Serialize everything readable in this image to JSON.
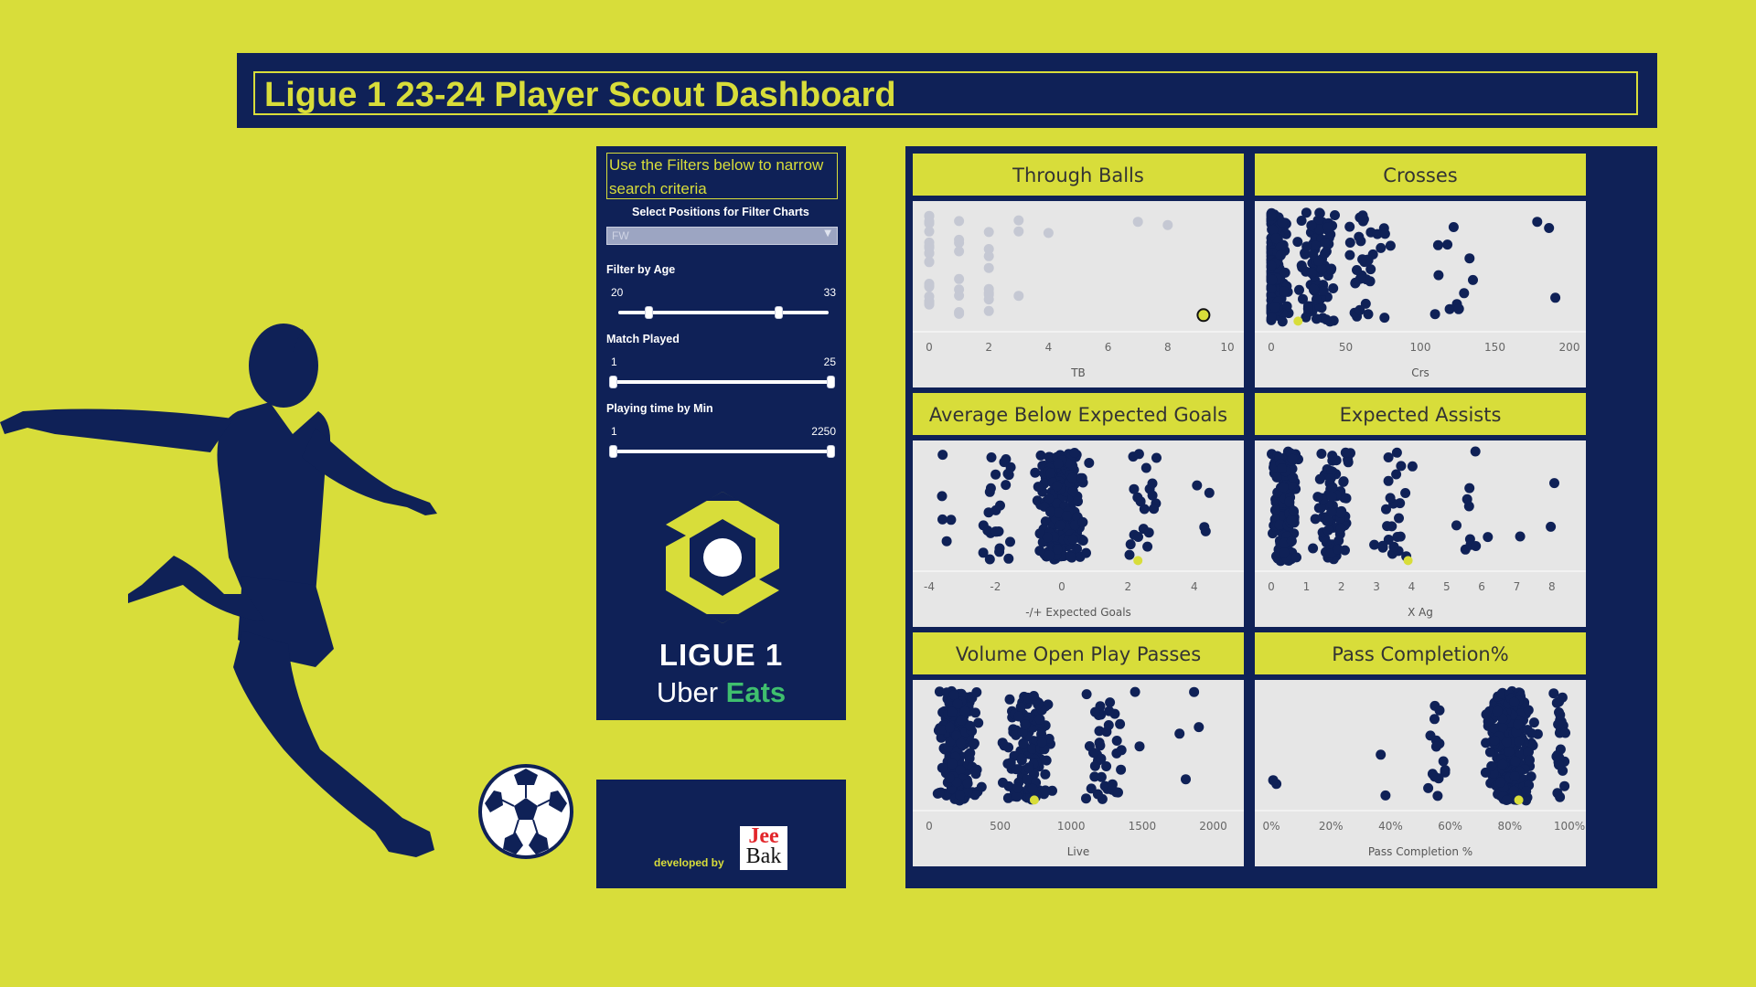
{
  "header": {
    "title": "Ligue 1 23-24 Player Scout Dashboard"
  },
  "filters": {
    "hint": "Use the Filters below to narrow search criteria",
    "position_label": "Select Positions for Filter Charts",
    "position_value": "FW",
    "age": {
      "label": "Filter by Age",
      "min_label": "20",
      "max_label": "33",
      "min": 20,
      "max": 33,
      "range": [
        17,
        38
      ]
    },
    "matches": {
      "label": "Match Played",
      "min_label": "1",
      "max_label": "25",
      "min": 1,
      "max": 25,
      "range": [
        1,
        25
      ]
    },
    "minutes": {
      "label": "Playing time by Min",
      "min_label": "1",
      "max_label": "2250",
      "min": 1,
      "max": 2250,
      "range": [
        1,
        2250
      ]
    }
  },
  "branding": {
    "league_text": "LIGUE 1",
    "sponsor_uber": "Uber",
    "sponsor_eats": "Eats"
  },
  "developer": {
    "label": "developed by",
    "logo_top": "Jee",
    "logo_bottom": "Bak"
  },
  "colors": {
    "background": "#d8dd3a",
    "navy": "#0f2157",
    "highlight": "#d8dd3a",
    "faded": "#c5c8d3",
    "plot_bg": "#e6e6e6"
  },
  "chart_data": [
    {
      "type": "scatter",
      "title": "Through Balls",
      "xlabel": "TB",
      "ticks": [
        "0",
        "2",
        "4",
        "6",
        "8",
        "10"
      ],
      "xlim": [
        0,
        10
      ],
      "seed": 11,
      "faded": true,
      "highlight": [
        9.2,
        0.1
      ],
      "clusters": [
        {
          "x": 0,
          "count": 22,
          "spread": 0.0
        },
        {
          "x": 1,
          "count": 9,
          "spread": 0.0
        },
        {
          "x": 2,
          "count": 9,
          "spread": 0.0
        },
        {
          "x": 3,
          "count": 3,
          "spread": 0.0
        },
        {
          "x": 4,
          "count": 1,
          "spread": 0.0
        },
        {
          "x": 7,
          "count": 1,
          "spread": 0.0
        },
        {
          "x": 8,
          "count": 1,
          "spread": 0.0
        }
      ]
    },
    {
      "type": "scatter",
      "title": "Crosses",
      "xlabel": "Crs",
      "ticks": [
        "0",
        "50",
        "100",
        "150",
        "200"
      ],
      "xlim": [
        0,
        200
      ],
      "seed": 23,
      "highlight": [
        18,
        0.05
      ],
      "clusters": [
        {
          "x": 3,
          "count": 150,
          "spread": 12
        },
        {
          "x": 30,
          "count": 90,
          "spread": 18
        },
        {
          "x": 65,
          "count": 35,
          "spread": 22
        },
        {
          "x": 125,
          "count": 12,
          "spread": 25
        },
        {
          "x": 185,
          "count": 3,
          "spread": 12
        }
      ]
    },
    {
      "type": "scatter",
      "title": "Average Below Expected Goals",
      "xlabel": "-/+ Expected Goals",
      "ticks": [
        "-4",
        "-2",
        "0",
        "2",
        "4"
      ],
      "xlim": [
        -4,
        5
      ],
      "seed": 37,
      "highlight": [
        2.3,
        0.05
      ],
      "clusters": [
        {
          "x": 0,
          "count": 210,
          "spread": 1.0
        },
        {
          "x": -2,
          "count": 25,
          "spread": 0.8
        },
        {
          "x": 2.5,
          "count": 20,
          "spread": 0.8
        },
        {
          "x": -3.5,
          "count": 5,
          "spread": 0.3
        },
        {
          "x": 4.2,
          "count": 4,
          "spread": 0.6
        }
      ]
    },
    {
      "type": "scatter",
      "title": "Expected Assists",
      "xlabel": "X Ag",
      "ticks": [
        "0",
        "1",
        "2",
        "3",
        "4",
        "5",
        "6",
        "7",
        "8"
      ],
      "xlim": [
        0,
        8.5
      ],
      "seed": 49,
      "highlight": [
        3.9,
        0.05
      ],
      "clusters": [
        {
          "x": 0.4,
          "count": 150,
          "spread": 0.5
        },
        {
          "x": 1.8,
          "count": 80,
          "spread": 0.7
        },
        {
          "x": 3.5,
          "count": 25,
          "spread": 0.8
        },
        {
          "x": 5.6,
          "count": 10,
          "spread": 0.8
        },
        {
          "x": 7.5,
          "count": 3,
          "spread": 0.7
        }
      ]
    },
    {
      "type": "scatter",
      "title": "Volume Open Play Passes",
      "xlabel": "Live",
      "ticks": [
        "0",
        "500",
        "1000",
        "1500",
        "2000"
      ],
      "xlim": [
        0,
        2100
      ],
      "seed": 61,
      "highlight": [
        740,
        0.05
      ],
      "clusters": [
        {
          "x": 200,
          "count": 200,
          "spread": 180
        },
        {
          "x": 700,
          "count": 120,
          "spread": 250
        },
        {
          "x": 1250,
          "count": 40,
          "spread": 250
        },
        {
          "x": 1800,
          "count": 4,
          "spread": 200
        }
      ]
    },
    {
      "type": "scatter",
      "title": "Pass Completion%",
      "xlabel": "Pass Completion %",
      "ticks": [
        "0%",
        "20%",
        "40%",
        "60%",
        "80%",
        "100%"
      ],
      "xlim": [
        0,
        100
      ],
      "seed": 73,
      "highlight": [
        83,
        0.05
      ],
      "clusters": [
        {
          "x": 80,
          "count": 260,
          "spread": 10
        },
        {
          "x": 97,
          "count": 25,
          "spread": 3
        },
        {
          "x": 55,
          "count": 15,
          "spread": 5
        },
        {
          "x": 38,
          "count": 2,
          "spread": 4
        },
        {
          "x": 1,
          "count": 2,
          "spread": 1
        }
      ]
    }
  ]
}
